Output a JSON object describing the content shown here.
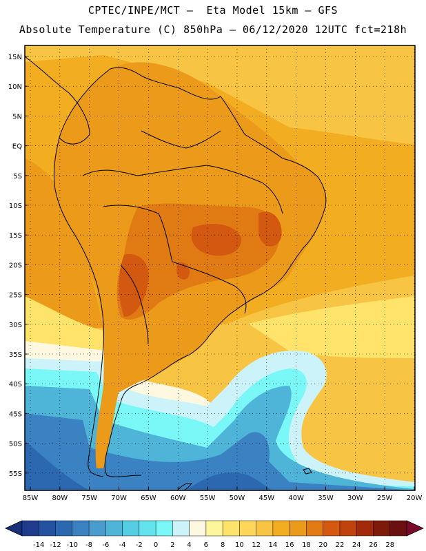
{
  "header": {
    "line1": "CPTEC/INPE/MCT –  Eta Model 15km – GFS",
    "line2": "Absolute Temperature (C) 850hPa – 06/12/2020 12UTC fct=218h"
  },
  "axes": {
    "lat_labels": [
      "15N",
      "10N",
      "5N",
      "EQ",
      "5S",
      "10S",
      "15S",
      "20S",
      "25S",
      "30S",
      "35S",
      "40S",
      "45S",
      "50S",
      "55S"
    ],
    "lon_labels": [
      "85W",
      "80W",
      "75W",
      "70W",
      "65W",
      "60W",
      "55W",
      "50W",
      "45W",
      "40W",
      "35W",
      "30W",
      "25W",
      "20W"
    ]
  },
  "colorbar": {
    "ticks": [
      "-14",
      "-12",
      "-10",
      "-8",
      "-6",
      "-4",
      "-2",
      "0",
      "2",
      "4",
      "6",
      "8",
      "10",
      "12",
      "14",
      "16",
      "18",
      "20",
      "22",
      "24",
      "26",
      "28"
    ],
    "colors": [
      "#1f3c8c",
      "#2552a0",
      "#2c68b0",
      "#3a82c2",
      "#4a9ccf",
      "#4fb5d8",
      "#55cde3",
      "#63e3ee",
      "#7af8f8",
      "#cdf3fa",
      "#fff8e0",
      "#fff59a",
      "#ffe36a",
      "#fdd65a",
      "#f8c443",
      "#f2ad20",
      "#ec9a1a",
      "#e07a12",
      "#d35810",
      "#c0420d",
      "#a12a0b",
      "#7e1a0a",
      "#6b1010"
    ],
    "low_arrow_color": "#1a2f7a",
    "high_arrow_color": "#7a0a2a"
  },
  "palette": {
    "land_hot": "#e88b15",
    "land_warm": "#ec9a1a",
    "ocean_warm": "#f2ad20",
    "ocean_mild": "#f8c443",
    "cool_yellow": "#ffe36a",
    "cream": "#fff8e0",
    "pale_cyan": "#cdf3fa",
    "cyan": "#7af8f8",
    "light_blue": "#4fb5d8",
    "mid_blue": "#3a82c2",
    "deep_blue": "#2c68b0",
    "hot_spot": "#d35810",
    "coast": "#000000"
  }
}
